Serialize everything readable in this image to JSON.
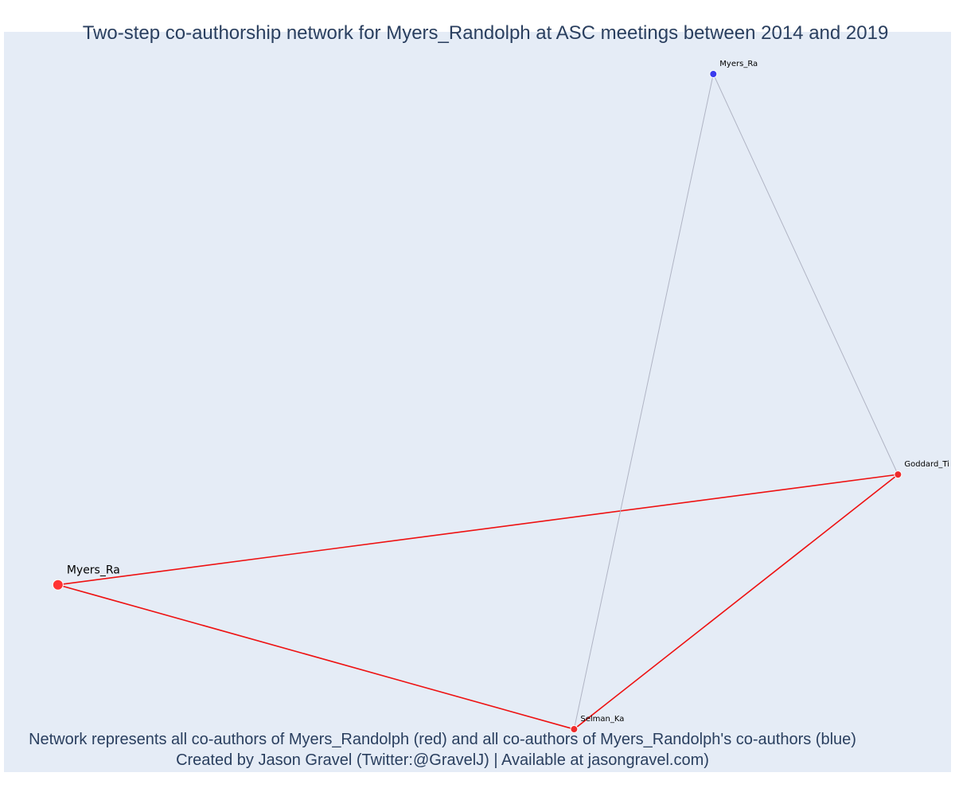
{
  "chart_data": {
    "type": "network",
    "title": "Two-step co-authorship network for Myers_Randolph at ASC meetings between 2014 and 2019",
    "colors": {
      "plot_background": "#e5ecf6",
      "text": "#2a3f5f",
      "ego": "#ff3333",
      "coauthor": "#ee2b2b",
      "second_step": "#3a3aee",
      "ego_edge": "#ee1111",
      "second_step_edge": "#b0b4c4"
    },
    "nodes": [
      {
        "id": "ego",
        "label": "Myers_Ra",
        "group": "ego",
        "x": 0.057,
        "y": 0.253
      },
      {
        "id": "goddard",
        "label": "Goddard_Ti",
        "group": "coauthor",
        "x": 0.944,
        "y": 0.402
      },
      {
        "id": "selman",
        "label": "Selman_Ka",
        "group": "coauthor",
        "x": 0.602,
        "y": 0.058
      },
      {
        "id": "myers2",
        "label": "Myers_Ra",
        "group": "second_step",
        "x": 0.749,
        "y": 0.943
      }
    ],
    "edges": [
      {
        "source": "ego",
        "target": "goddard",
        "type": "ego"
      },
      {
        "source": "ego",
        "target": "selman",
        "type": "ego"
      },
      {
        "source": "goddard",
        "target": "selman",
        "type": "ego"
      },
      {
        "source": "myers2",
        "target": "goddard",
        "type": "second_step"
      },
      {
        "source": "myers2",
        "target": "selman",
        "type": "second_step"
      }
    ]
  },
  "footnote": {
    "line1": "Network represents all co-authors of Myers_Randolph (red) and all co-authors of Myers_Randolph's co-authors (blue)",
    "line2": "Created by Jason Gravel (Twitter:@GravelJ) | Available at jasongravel.com)"
  }
}
